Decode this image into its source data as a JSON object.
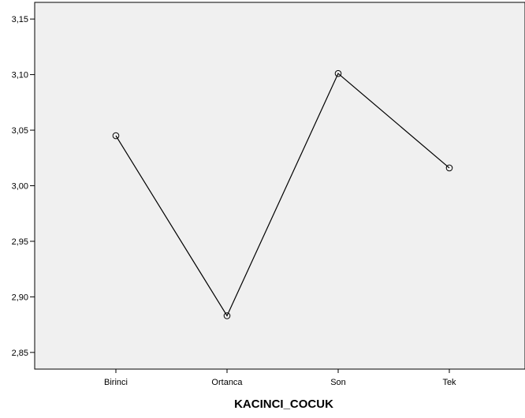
{
  "chart_data": {
    "type": "line",
    "title": "",
    "xlabel": "KACINCI_COCUK",
    "ylabel": "",
    "categories": [
      "Birinci",
      "Ortanca",
      "Son",
      "Tek"
    ],
    "values": [
      3.045,
      2.883,
      3.101,
      3.016
    ],
    "ylim": [
      2.835,
      3.165
    ],
    "yticks": [
      2.85,
      2.9,
      2.95,
      3.0,
      3.05,
      3.1,
      3.15
    ],
    "ytick_labels": [
      "2,85",
      "2,90",
      "2,95",
      "3,00",
      "3,05",
      "3,10",
      "3,15"
    ],
    "grid": false,
    "legend": "none",
    "marker": "open-circle",
    "colors": {
      "plot_background": "#f0f0f0",
      "line": "#000000",
      "frame": "#000000"
    }
  }
}
